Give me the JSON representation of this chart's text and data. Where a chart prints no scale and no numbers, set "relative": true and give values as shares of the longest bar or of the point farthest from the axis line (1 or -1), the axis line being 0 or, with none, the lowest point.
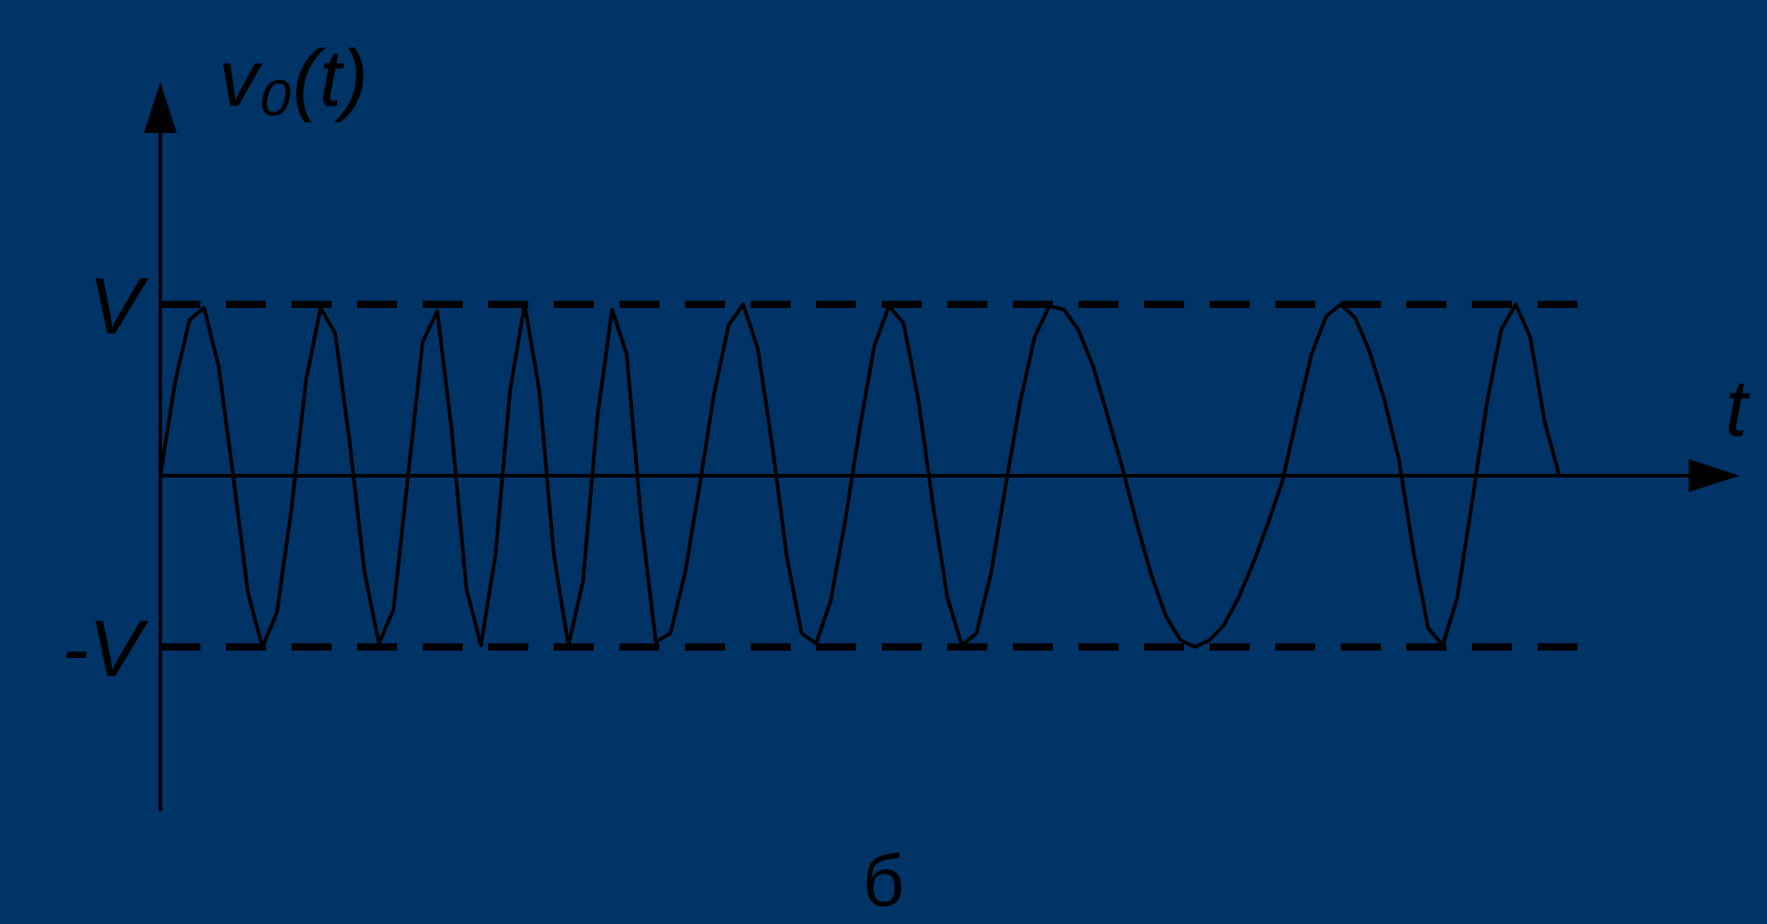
{
  "chart_data": {
    "type": "line",
    "relative": true,
    "ylabel": "v₀(t)",
    "xlabel": "t",
    "annotations": [
      "б"
    ],
    "categories": [
      null,
      null,
      null,
      null,
      null,
      null,
      null,
      null,
      null,
      null,
      null,
      null,
      null,
      null,
      null,
      null,
      null,
      null,
      null,
      null,
      null,
      null,
      null,
      null,
      null,
      null,
      null,
      null,
      null,
      null,
      null,
      null,
      null,
      null,
      null,
      null,
      null,
      null,
      null,
      null,
      null,
      null,
      null,
      null,
      null,
      null,
      null,
      null,
      null,
      null,
      null,
      null,
      null,
      null,
      null,
      null,
      null,
      null,
      null,
      null,
      null,
      null,
      null,
      null,
      null,
      null,
      null,
      null,
      null,
      null,
      null,
      null,
      null,
      null,
      null,
      null,
      null,
      null,
      null,
      null,
      null,
      null,
      null,
      null,
      null,
      null,
      null,
      null,
      null,
      null,
      null,
      null,
      null,
      null,
      null,
      null,
      null
    ],
    "series": [
      {
        "color": "#000000",
        "values": [
          0,
          0.54,
          0.91,
          0.98,
          0.64,
          0,
          -0.68,
          -1,
          -0.8,
          -0.19,
          0.56,
          0.98,
          0.83,
          0.19,
          -0.56,
          -0.98,
          -0.78,
          0,
          0.78,
          0.96,
          0.26,
          -0.66,
          -0.99,
          -0.46,
          0.5,
          1,
          0.5,
          -0.46,
          -0.99,
          -0.62,
          0.35,
          0.97,
          0.71,
          -0.26,
          -0.97,
          -0.92,
          -0.57,
          -0.06,
          0.48,
          0.88,
          1,
          0.74,
          0.17,
          -0.48,
          -0.92,
          -0.98,
          -0.73,
          -0.26,
          0.28,
          0.76,
          0.99,
          0.89,
          0.45,
          -0.16,
          -0.71,
          -0.99,
          -0.92,
          -0.57,
          -0.06,
          0.43,
          0.81,
          0.99,
          0.97,
          0.85,
          0.64,
          0.35,
          0.05,
          -0.28,
          -0.58,
          -0.82,
          -0.96,
          -1,
          -0.96,
          -0.87,
          -0.71,
          -0.51,
          -0.28,
          -0.03,
          0.35,
          0.71,
          0.93,
          1,
          0.92,
          0.72,
          0.44,
          0.09,
          -0.45,
          -0.89,
          -0.99,
          -0.71,
          -0.16,
          0.41,
          0.85,
          1,
          0.81,
          0.31,
          0
        ]
      }
    ],
    "legend": false,
    "marker": "none",
    "line_style": "solid",
    "ref_lines": [
      {
        "axis": "y",
        "value": 1,
        "label": "V",
        "line_style": "dashed",
        "color": "#000000"
      },
      {
        "axis": "y",
        "value": -1,
        "label": "-V",
        "line_style": "dashed",
        "color": "#000000"
      }
    ]
  }
}
